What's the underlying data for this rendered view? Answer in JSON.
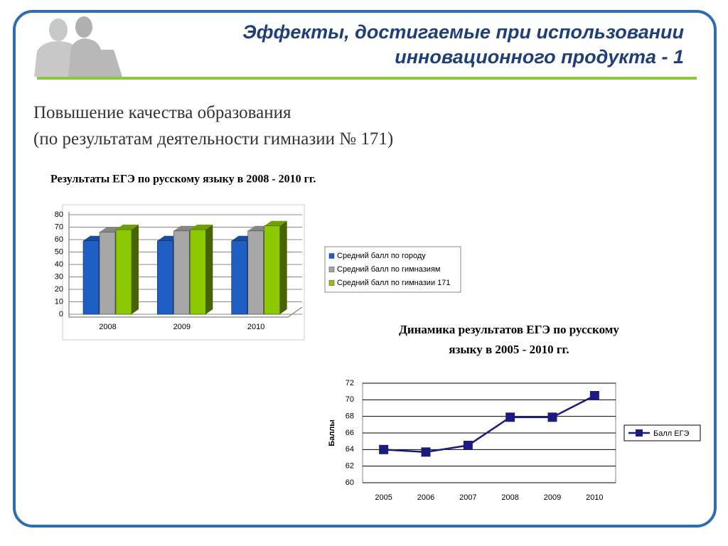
{
  "header": {
    "title_lines": [
      "Эффекты, достигаемые при использовании",
      "инновационного продукта - 1"
    ],
    "subtitle_lines": [
      "Повышение качества образования",
      "(по результатам деятельности гимназии № 171)"
    ]
  },
  "chart_data": [
    {
      "type": "bar3d",
      "title": "Результаты ЕГЭ по русскому языку в 2008 - 2010 гг.",
      "categories": [
        "2008",
        "2009",
        "2010"
      ],
      "series": [
        {
          "name": "Средний балл по городу",
          "color": "#1f5fc4",
          "values": [
            59,
            59,
            59
          ]
        },
        {
          "name": "Средний балл по гимназиям",
          "color": "#a6a6a6",
          "values": [
            66,
            67,
            67
          ]
        },
        {
          "name": "Средний балл по гимназии 171",
          "color": "#8cc800",
          "values": [
            68,
            68,
            71
          ]
        }
      ],
      "ylim": [
        0,
        80
      ],
      "yticks": [
        0,
        10,
        20,
        30,
        40,
        50,
        60,
        70,
        80
      ],
      "grid": true,
      "legend": "right"
    },
    {
      "type": "line",
      "title": [
        "Динамика результатов ЕГЭ по русскому",
        "языку в 2005 - 2010 гг."
      ],
      "ylabel": "Баллы",
      "categories": [
        "2005",
        "2006",
        "2007",
        "2008",
        "2009",
        "2010"
      ],
      "series": [
        {
          "name": "Балл ЕГЭ",
          "color": "#1a1a80",
          "values": [
            64.0,
            63.7,
            64.5,
            67.9,
            67.9,
            70.5
          ]
        }
      ],
      "ylim": [
        60,
        72
      ],
      "yticks": [
        60,
        62,
        64,
        66,
        68,
        70,
        72
      ],
      "grid": true,
      "legend": "right"
    }
  ]
}
